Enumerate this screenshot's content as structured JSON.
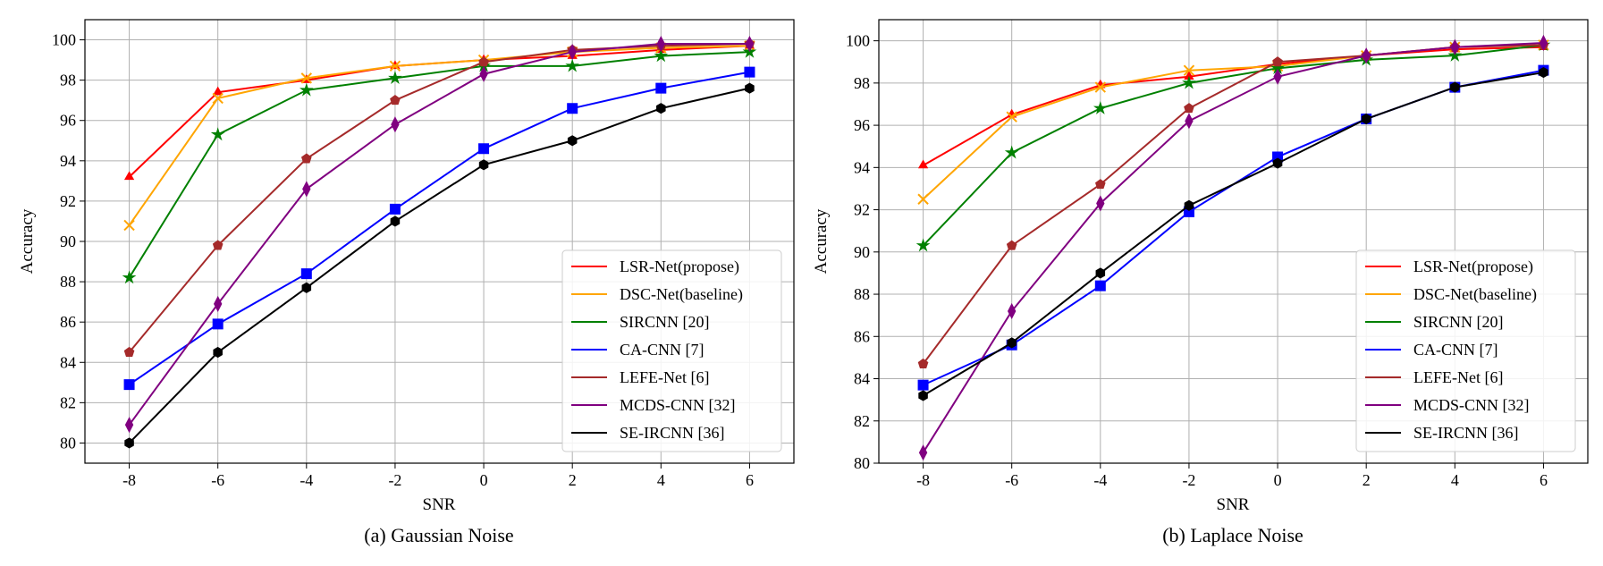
{
  "chart_data": [
    {
      "type": "line",
      "caption": "(a) Gaussian Noise",
      "xlabel": "SNR",
      "ylabel": "Accuracy",
      "x": [
        -8,
        -6,
        -4,
        -2,
        0,
        2,
        4,
        6
      ],
      "xticks": [
        "-8",
        "-6",
        "-4",
        "-2",
        "0",
        "2",
        "4",
        "6"
      ],
      "yticks": [
        "80",
        "82",
        "84",
        "86",
        "88",
        "90",
        "92",
        "94",
        "96",
        "98",
        "100"
      ],
      "xlim": [
        -9,
        7
      ],
      "ylim": [
        79,
        101
      ],
      "grid": true,
      "legend_position": "lower-right",
      "series": [
        {
          "name": "LSR-Net(propose)",
          "color": "#ff0000",
          "marker": "triangle",
          "values": [
            93.2,
            97.4,
            98.0,
            98.7,
            99.0,
            99.2,
            99.5,
            99.7
          ]
        },
        {
          "name": "DSC-Net(baseline)",
          "color": "#ffa500",
          "marker": "x",
          "values": [
            90.8,
            97.1,
            98.1,
            98.7,
            99.0,
            99.4,
            99.6,
            99.7
          ]
        },
        {
          "name": "SIRCNN [20]",
          "color": "#008000",
          "marker": "star",
          "values": [
            88.2,
            95.3,
            97.5,
            98.1,
            98.7,
            98.7,
            99.2,
            99.4
          ]
        },
        {
          "name": "CA-CNN [7]",
          "color": "#0000ff",
          "marker": "square",
          "values": [
            82.9,
            85.9,
            88.4,
            91.6,
            94.6,
            96.6,
            97.6,
            98.4
          ]
        },
        {
          "name": "LEFE-Net [6]",
          "color": "#a52a2a",
          "marker": "pentagon",
          "values": [
            84.5,
            89.8,
            94.1,
            97.0,
            98.9,
            99.5,
            99.7,
            99.8
          ]
        },
        {
          "name": "MCDS-CNN [32]",
          "color": "#800080",
          "marker": "diamond",
          "values": [
            80.9,
            86.9,
            92.6,
            95.8,
            98.3,
            99.4,
            99.8,
            99.8
          ]
        },
        {
          "name": "SE-IRCNN [36]",
          "color": "#000000",
          "marker": "hexagon",
          "values": [
            80.0,
            84.5,
            87.7,
            91.0,
            93.8,
            95.0,
            96.6,
            97.6
          ]
        }
      ]
    },
    {
      "type": "line",
      "caption": "(b) Laplace Noise",
      "xlabel": "SNR",
      "ylabel": "Accuracy",
      "x": [
        -8,
        -6,
        -4,
        -2,
        0,
        2,
        4,
        6
      ],
      "xticks": [
        "-8",
        "-6",
        "-4",
        "-2",
        "0",
        "2",
        "4",
        "6"
      ],
      "yticks": [
        "80",
        "82",
        "84",
        "86",
        "88",
        "90",
        "92",
        "94",
        "96",
        "98",
        "100"
      ],
      "xlim": [
        -9,
        7
      ],
      "ylim": [
        80,
        101
      ],
      "grid": true,
      "legend_position": "lower-right",
      "series": [
        {
          "name": "LSR-Net(propose)",
          "color": "#ff0000",
          "marker": "triangle",
          "values": [
            94.1,
            96.5,
            97.9,
            98.3,
            98.9,
            99.3,
            99.6,
            99.7
          ]
        },
        {
          "name": "DSC-Net(baseline)",
          "color": "#ffa500",
          "marker": "x",
          "values": [
            92.5,
            96.4,
            97.8,
            98.6,
            98.8,
            99.3,
            99.7,
            99.8
          ]
        },
        {
          "name": "SIRCNN [20]",
          "color": "#008000",
          "marker": "star",
          "values": [
            90.3,
            94.7,
            96.8,
            98.0,
            98.7,
            99.1,
            99.3,
            99.8
          ]
        },
        {
          "name": "CA-CNN [7]",
          "color": "#0000ff",
          "marker": "square",
          "values": [
            83.7,
            85.6,
            88.4,
            91.9,
            94.5,
            96.3,
            97.8,
            98.6
          ]
        },
        {
          "name": "LEFE-Net [6]",
          "color": "#a52a2a",
          "marker": "pentagon",
          "values": [
            84.7,
            90.3,
            93.2,
            96.8,
            99.0,
            99.3,
            99.7,
            99.8
          ]
        },
        {
          "name": "MCDS-CNN [32]",
          "color": "#800080",
          "marker": "diamond",
          "values": [
            80.5,
            87.2,
            92.3,
            96.2,
            98.3,
            99.3,
            99.7,
            99.9
          ]
        },
        {
          "name": "SE-IRCNN [36]",
          "color": "#000000",
          "marker": "hexagon",
          "values": [
            83.2,
            85.7,
            89.0,
            92.2,
            94.2,
            96.3,
            97.8,
            98.5
          ]
        }
      ]
    }
  ]
}
